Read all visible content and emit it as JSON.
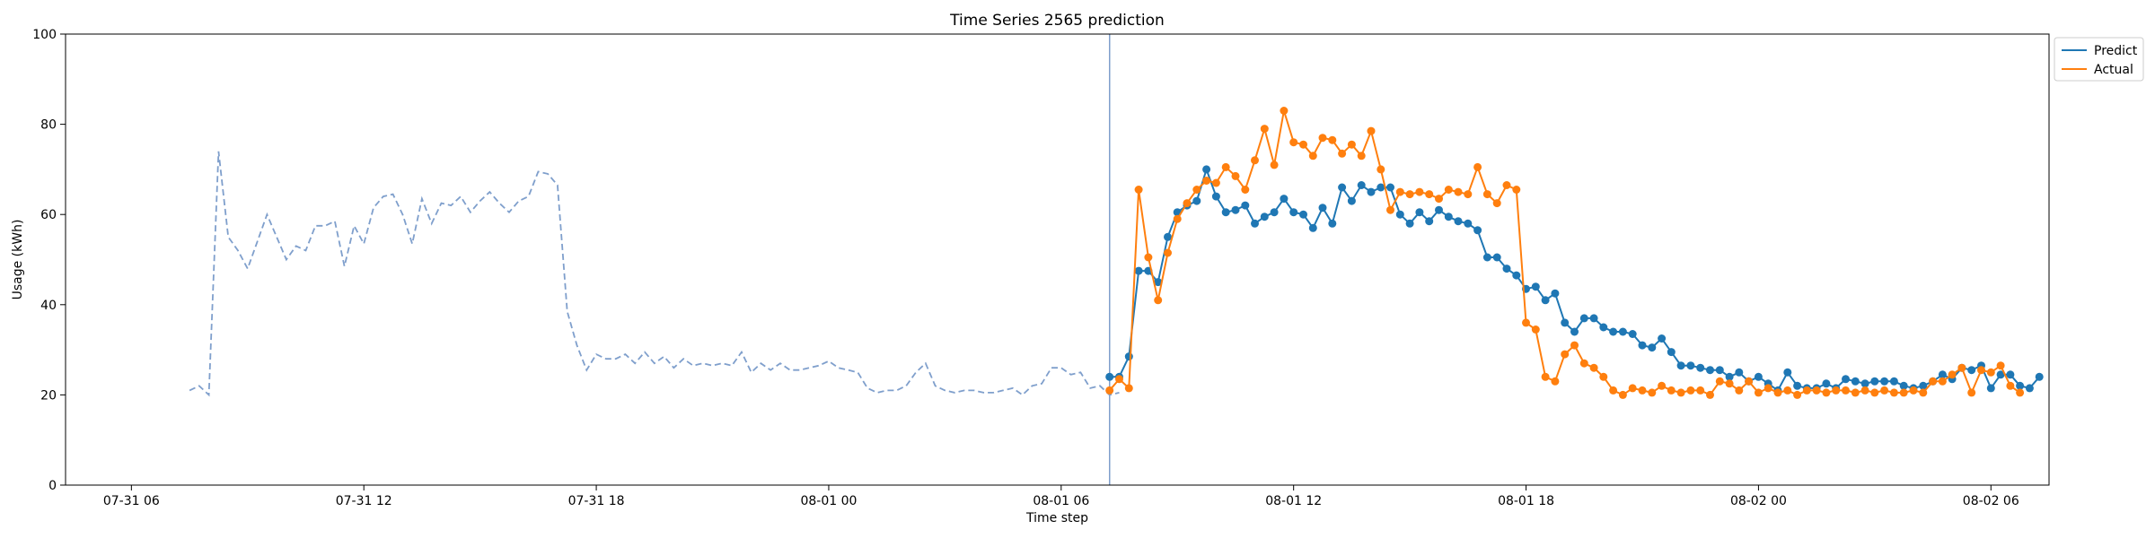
{
  "chart_data": {
    "type": "line",
    "title": "Time Series 2565 prediction",
    "xlabel": "Time step",
    "ylabel": "Usage (kWh)",
    "ylim": [
      0,
      100
    ],
    "yticks": [
      0,
      20,
      40,
      60,
      80,
      100
    ],
    "xlim_hours": [
      4.3,
      55.5
    ],
    "xticks": [
      {
        "label": "07-31 06",
        "hours": 6
      },
      {
        "label": "07-31 12",
        "hours": 12
      },
      {
        "label": "07-31 18",
        "hours": 18
      },
      {
        "label": "08-01 00",
        "hours": 24
      },
      {
        "label": "08-01 06",
        "hours": 30
      },
      {
        "label": "08-01 12",
        "hours": 36
      },
      {
        "label": "08-01 18",
        "hours": 42
      },
      {
        "label": "08-02 00",
        "hours": 48
      },
      {
        "label": "08-02 06",
        "hours": 54
      }
    ],
    "forecast_start_hours": 31.25,
    "history": {
      "start_hours": 7.5,
      "step_hours": 0.25,
      "color": "#7f9fcc",
      "values": [
        21,
        22,
        20,
        74,
        55,
        52,
        48,
        54,
        60,
        55,
        50,
        53,
        52,
        57.5,
        57.5,
        58.5,
        48.5,
        57.5,
        53.5,
        61.5,
        64,
        64.5,
        60,
        53.5,
        63.5,
        58,
        62.5,
        62,
        64,
        60.5,
        63,
        65,
        62.5,
        60.5,
        63,
        64,
        69.5,
        69,
        66.5,
        38.5,
        31,
        25.5,
        29,
        28,
        28,
        29,
        27,
        29.5,
        27,
        28.5,
        26,
        28,
        26.5,
        27,
        26.5,
        27,
        26.5,
        29.5,
        25,
        27,
        25.5,
        27,
        25.5,
        25.5,
        26,
        26.5,
        27.5,
        26,
        25.5,
        25,
        21.5,
        20.5,
        21,
        21,
        22,
        25,
        27,
        22,
        21,
        20.5,
        21,
        21,
        20.5,
        20.5,
        21,
        21.5,
        20,
        22,
        22.5,
        26,
        26,
        24.5,
        25,
        21.5,
        22,
        20,
        20.5
      ]
    },
    "series": [
      {
        "name": "Predict",
        "color": "#1f77b4",
        "start_hours": 31.25,
        "step_hours": 0.25,
        "values": [
          24,
          24,
          28.5,
          47.5,
          47.5,
          45,
          55,
          60.5,
          62,
          63,
          70,
          64,
          60.5,
          61,
          62,
          58,
          59.5,
          60.5,
          63.5,
          60.5,
          60,
          57,
          61.5,
          58,
          66,
          63,
          66.5,
          65,
          66,
          66,
          60,
          58,
          60.5,
          58.5,
          61,
          59.5,
          58.5,
          58,
          56.5,
          50.5,
          50.5,
          48,
          46.5,
          43.5,
          44,
          41,
          42.5,
          36,
          34,
          37,
          37,
          35,
          34,
          34,
          33.5,
          31,
          30.5,
          32.5,
          29.5,
          26.5,
          26.5,
          26,
          25.5,
          25.5,
          24,
          25,
          23,
          24,
          22.5,
          21,
          25,
          22,
          21.5,
          21.5,
          22.5,
          21.5,
          23.5,
          23,
          22.5,
          23,
          23,
          23,
          22,
          21.5,
          22,
          23,
          24.5,
          23.5,
          26,
          25.5,
          26.5,
          21.5,
          24.5,
          24.5,
          22,
          21.5,
          24
        ]
      },
      {
        "name": "Actual",
        "color": "#ff7f0e",
        "start_hours": 31.25,
        "step_hours": 0.25,
        "values": [
          21,
          23.5,
          21.5,
          65.5,
          50.5,
          41,
          51.5,
          59,
          62.5,
          65.5,
          67.5,
          67,
          70.5,
          68.5,
          65.5,
          72,
          79,
          71,
          83,
          76,
          75.5,
          73,
          77,
          76.5,
          73.5,
          75.5,
          73,
          78.5,
          70,
          61,
          65,
          64.5,
          65,
          64.5,
          63.5,
          65.5,
          65,
          64.5,
          70.5,
          64.5,
          62.5,
          66.5,
          65.5,
          36,
          34.5,
          24,
          23,
          29,
          31,
          27,
          26,
          24,
          21,
          20,
          21.5,
          21,
          20.5,
          22,
          21,
          20.5,
          21,
          21,
          20,
          23,
          22.5,
          21,
          23,
          20.5,
          21.5,
          20.5,
          21,
          20,
          21,
          21,
          20.5,
          21,
          21,
          20.5,
          21,
          20.5,
          21,
          20.5,
          20.5,
          21,
          20.5,
          23,
          23,
          24.5,
          26,
          20.5,
          25.5,
          25,
          26.5,
          22,
          20.5
        ]
      }
    ],
    "legend": {
      "placement": "upper-right-outside"
    },
    "grid": false
  }
}
